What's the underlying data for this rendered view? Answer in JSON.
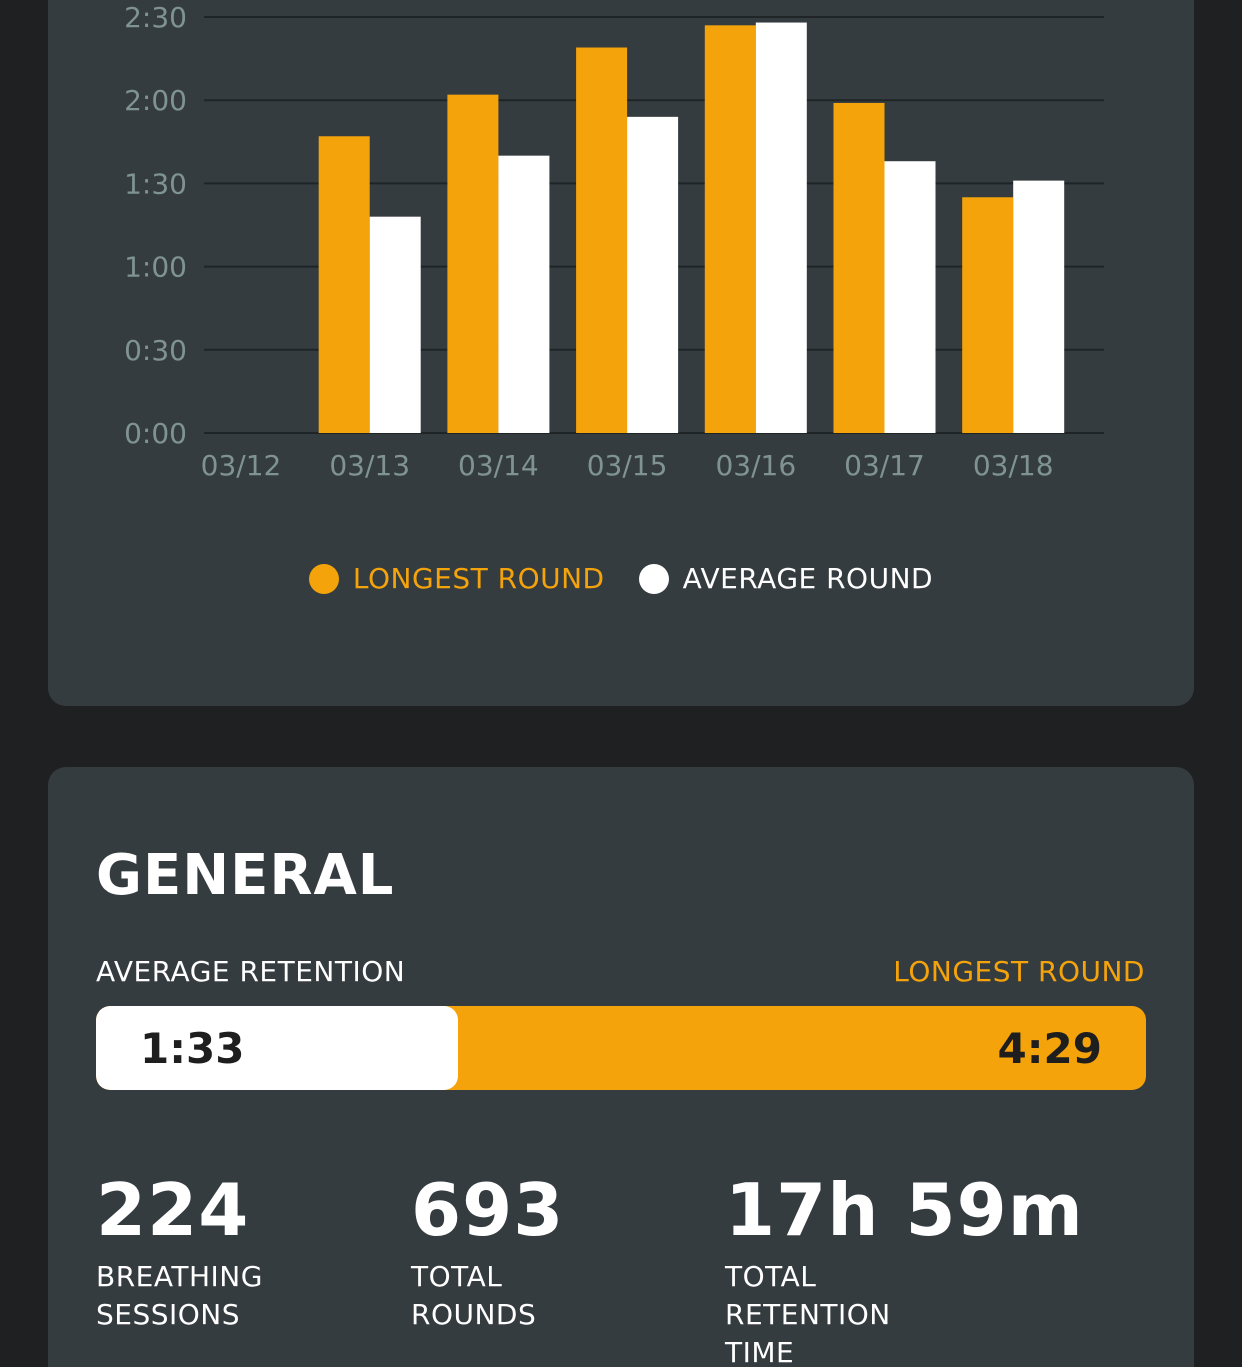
{
  "colors": {
    "page_bg": "#1f2021",
    "card_bg": "#353c40",
    "accent": "#f5a30b",
    "white": "#ffffff",
    "axis_text": "#7f9391"
  },
  "chart_data": {
    "type": "bar",
    "categories": [
      "03/12",
      "03/13",
      "03/14",
      "03/15",
      "03/16",
      "03/17",
      "03/18"
    ],
    "series": [
      {
        "name": "LONGEST ROUND",
        "values_seconds": [
          0,
          107,
          122,
          139,
          147,
          119,
          85
        ],
        "color": "#f5a30b"
      },
      {
        "name": "AVERAGE ROUND",
        "values_seconds": [
          0,
          78,
          100,
          114,
          148,
          98,
          91
        ],
        "color": "#ffffff"
      }
    ],
    "y_ticks": [
      "0:00",
      "0:30",
      "1:00",
      "1:30",
      "2:00",
      "2:30"
    ],
    "ylim_seconds": [
      0,
      150
    ],
    "grid": true,
    "legend_placement": "bottom-center"
  },
  "legend": {
    "longest_label": "LONGEST ROUND",
    "average_label": "AVERAGE ROUND"
  },
  "general": {
    "title": "GENERAL",
    "average_retention_label": "AVERAGE RETENTION",
    "longest_round_label": "LONGEST ROUND",
    "average_retention_value": "1:33",
    "longest_round_value": "4:29",
    "average_fraction": 0.345,
    "stats": [
      {
        "value": "224",
        "label": "BREATHING\nSESSIONS"
      },
      {
        "value": "693",
        "label": "TOTAL\nROUNDS"
      },
      {
        "value": "17h 59m",
        "label": "TOTAL RETENTION\nTIME"
      }
    ]
  }
}
